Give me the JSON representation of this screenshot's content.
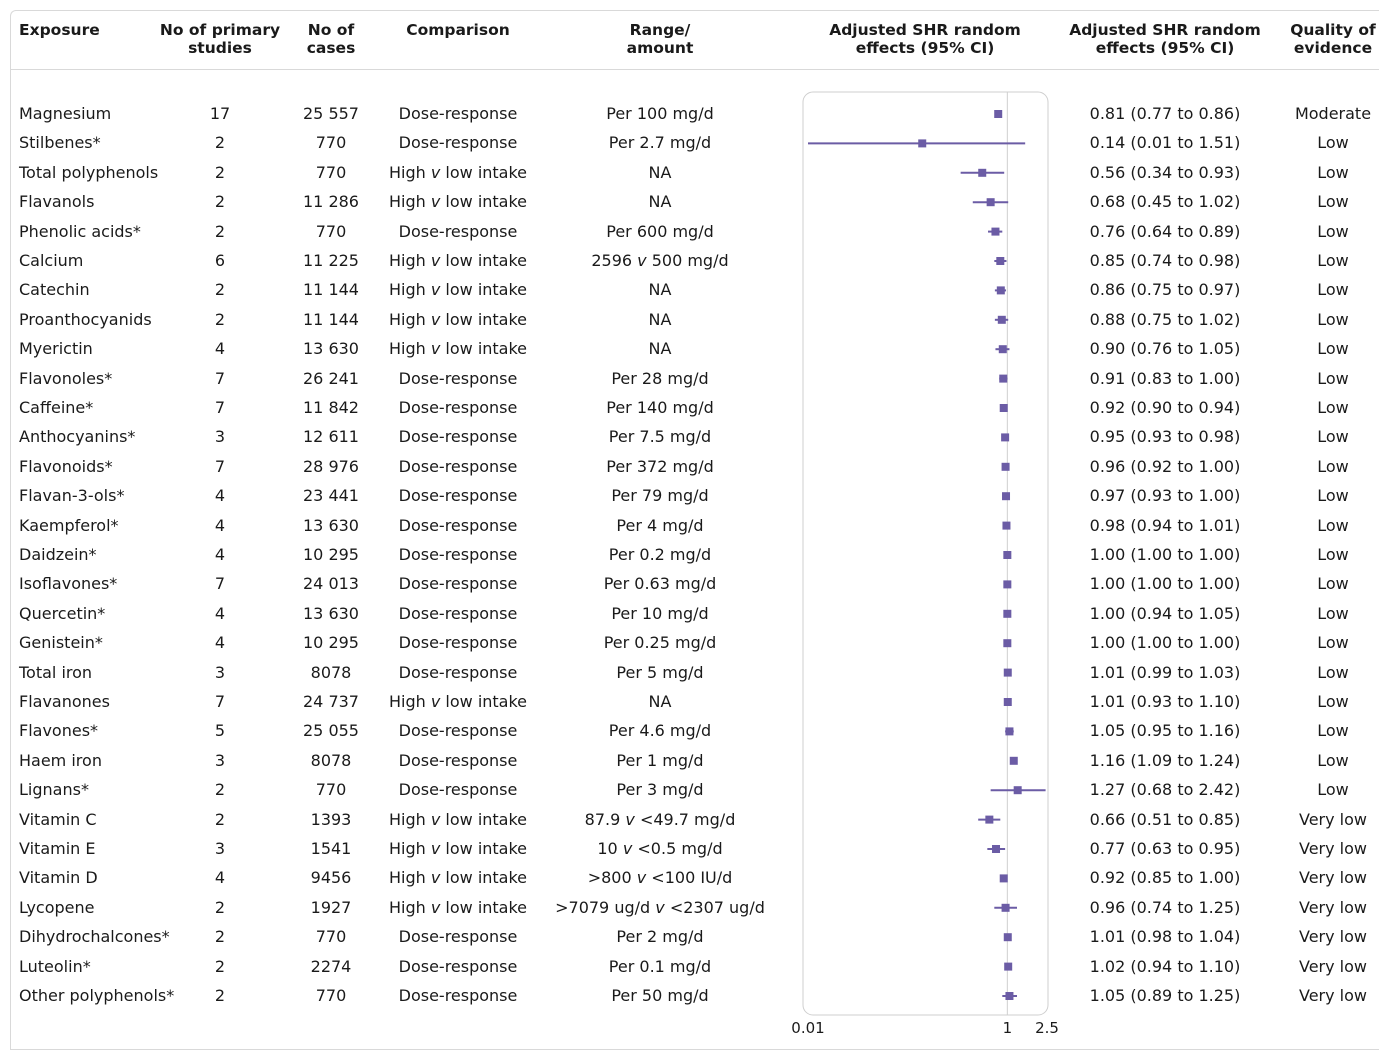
{
  "headers": {
    "exposure": "Exposure",
    "studies": "No of primary\nstudies",
    "cases": "No of\ncases",
    "comparison": "Comparison",
    "range": "Range/\namount",
    "plot": "Adjusted SHR random\neffects (95% CI)",
    "estimate": "Adjusted SHR random\neffects (95% CI)",
    "quality": "Quality of\nevidence"
  },
  "colors": {
    "marker": "#6b5ca5",
    "frame": "#cfcfcf",
    "refline": "#cfcfcf"
  },
  "chart_data": {
    "type": "forest",
    "xscale": "log",
    "xlim": [
      0.01,
      2.5
    ],
    "reference_line": 1,
    "tick_labels": [
      "0.01",
      "1",
      "2.5"
    ],
    "rows": [
      {
        "exposure": "Magnesium",
        "studies": "17",
        "cases": "25 557",
        "comparison": "Dose-response",
        "range": "Per 100 mg/d",
        "est": 0.81,
        "lo": 0.77,
        "hi": 0.86,
        "label": "0.81 (0.77 to 0.86)",
        "quality": "Moderate"
      },
      {
        "exposure": "Stilbenes*",
        "studies": "2",
        "cases": "770",
        "comparison": "Dose-response",
        "range": "Per 2.7 mg/d",
        "est": 0.14,
        "lo": 0.01,
        "hi": 1.51,
        "label": "0.14 (0.01 to 1.51)",
        "quality": "Low"
      },
      {
        "exposure": "Total polyphenols",
        "studies": "2",
        "cases": "770",
        "comparison": "High v low intake",
        "range": "NA",
        "est": 0.56,
        "lo": 0.34,
        "hi": 0.93,
        "label": "0.56 (0.34 to 0.93)",
        "quality": "Low"
      },
      {
        "exposure": "Flavanols",
        "studies": "2",
        "cases": "11 286",
        "comparison": "High v low intake",
        "range": "NA",
        "est": 0.68,
        "lo": 0.45,
        "hi": 1.02,
        "label": "0.68 (0.45 to 1.02)",
        "quality": "Low"
      },
      {
        "exposure": "Phenolic acids*",
        "studies": "2",
        "cases": "770",
        "comparison": "Dose-response",
        "range": "Per 600 mg/d",
        "est": 0.76,
        "lo": 0.64,
        "hi": 0.89,
        "label": "0.76 (0.64 to 0.89)",
        "quality": "Low"
      },
      {
        "exposure": "Calcium",
        "studies": "6",
        "cases": "11 225",
        "comparison": "High v low intake",
        "range": "2596 v 500  mg/d",
        "est": 0.85,
        "lo": 0.74,
        "hi": 0.98,
        "label": "0.85 (0.74 to 0.98)",
        "quality": "Low"
      },
      {
        "exposure": "Catechin",
        "studies": "2",
        "cases": "11 144",
        "comparison": "High v low intake",
        "range": "NA",
        "est": 0.86,
        "lo": 0.75,
        "hi": 0.97,
        "label": "0.86 (0.75 to 0.97)",
        "quality": "Low"
      },
      {
        "exposure": "Proanthocyanids",
        "studies": "2",
        "cases": "11 144",
        "comparison": "High v low intake",
        "range": "NA",
        "est": 0.88,
        "lo": 0.75,
        "hi": 1.02,
        "label": "0.88 (0.75 to 1.02)",
        "quality": "Low"
      },
      {
        "exposure": "Myerictin",
        "studies": "4",
        "cases": "13 630",
        "comparison": "High v low intake",
        "range": "NA",
        "est": 0.9,
        "lo": 0.76,
        "hi": 1.05,
        "label": "0.90 (0.76 to 1.05)",
        "quality": "Low"
      },
      {
        "exposure": "Flavonoles*",
        "studies": "7",
        "cases": "26 241",
        "comparison": "Dose-response",
        "range": "Per 28 mg/d",
        "est": 0.91,
        "lo": 0.83,
        "hi": 1.0,
        "label": "0.91 (0.83 to 1.00)",
        "quality": "Low"
      },
      {
        "exposure": "Caffeine*",
        "studies": "7",
        "cases": "11 842",
        "comparison": "Dose-response",
        "range": "Per 140 mg/d",
        "est": 0.92,
        "lo": 0.9,
        "hi": 0.94,
        "label": "0.92 (0.90 to 0.94)",
        "quality": "Low"
      },
      {
        "exposure": "Anthocyanins*",
        "studies": "3",
        "cases": "12 611",
        "comparison": "Dose-response",
        "range": "Per 7.5 mg/d",
        "est": 0.95,
        "lo": 0.93,
        "hi": 0.98,
        "label": "0.95 (0.93 to 0.98)",
        "quality": "Low"
      },
      {
        "exposure": "Flavonoids*",
        "studies": "7",
        "cases": "28 976",
        "comparison": "Dose-response",
        "range": "Per 372 mg/d",
        "est": 0.96,
        "lo": 0.92,
        "hi": 1.0,
        "label": "0.96 (0.92 to 1.00)",
        "quality": "Low"
      },
      {
        "exposure": "Flavan-3-ols*",
        "studies": "4",
        "cases": "23 441",
        "comparison": "Dose-response",
        "range": "Per 79 mg/d",
        "est": 0.97,
        "lo": 0.93,
        "hi": 1.0,
        "label": "0.97 (0.93 to 1.00)",
        "quality": "Low"
      },
      {
        "exposure": "Kaempferol*",
        "studies": "4",
        "cases": "13 630",
        "comparison": "Dose-response",
        "range": "Per 4 mg/d",
        "est": 0.98,
        "lo": 0.94,
        "hi": 1.01,
        "label": "0.98 (0.94 to 1.01)",
        "quality": "Low"
      },
      {
        "exposure": "Daidzein*",
        "studies": "4",
        "cases": "10 295",
        "comparison": "Dose-response",
        "range": "Per 0.2 mg/d",
        "est": 1.0,
        "lo": 1.0,
        "hi": 1.0,
        "label": "1.00 (1.00 to 1.00)",
        "quality": "Low"
      },
      {
        "exposure": "Isoflavones*",
        "studies": "7",
        "cases": "24 013",
        "comparison": "Dose-response",
        "range": "Per 0.63 mg/d",
        "est": 1.0,
        "lo": 1.0,
        "hi": 1.0,
        "label": "1.00 (1.00 to 1.00)",
        "quality": "Low"
      },
      {
        "exposure": "Quercetin*",
        "studies": "4",
        "cases": "13 630",
        "comparison": "Dose-response",
        "range": "Per 10 mg/d",
        "est": 1.0,
        "lo": 0.94,
        "hi": 1.05,
        "label": "1.00 (0.94 to 1.05)",
        "quality": "Low"
      },
      {
        "exposure": "Genistein*",
        "studies": "4",
        "cases": "10 295",
        "comparison": "Dose-response",
        "range": "Per 0.25 mg/d",
        "est": 1.0,
        "lo": 1.0,
        "hi": 1.0,
        "label": "1.00 (1.00 to 1.00)",
        "quality": "Low"
      },
      {
        "exposure": "Total iron",
        "studies": "3",
        "cases": "8078",
        "comparison": "Dose-response",
        "range": "Per 5 mg/d",
        "est": 1.01,
        "lo": 0.99,
        "hi": 1.03,
        "label": "1.01 (0.99 to 1.03)",
        "quality": "Low"
      },
      {
        "exposure": "Flavanones",
        "studies": "7",
        "cases": "24 737",
        "comparison": "High v low intake",
        "range": "NA",
        "est": 1.01,
        "lo": 0.93,
        "hi": 1.1,
        "label": "1.01 (0.93 to 1.10)",
        "quality": "Low"
      },
      {
        "exposure": "Flavones*",
        "studies": "5",
        "cases": "25 055",
        "comparison": "Dose-response",
        "range": "Per 4.6 mg/d",
        "est": 1.05,
        "lo": 0.95,
        "hi": 1.16,
        "label": "1.05 (0.95 to 1.16)",
        "quality": "Low"
      },
      {
        "exposure": "Haem iron",
        "studies": "3",
        "cases": "8078",
        "comparison": "Dose-response",
        "range": "Per 1 mg/d",
        "est": 1.16,
        "lo": 1.09,
        "hi": 1.24,
        "label": "1.16 (1.09 to 1.24)",
        "quality": "Low"
      },
      {
        "exposure": "Lignans*",
        "studies": "2",
        "cases": "770",
        "comparison": "Dose-response",
        "range": "Per 3 mg/d",
        "est": 1.27,
        "lo": 0.68,
        "hi": 2.42,
        "label": "1.27 (0.68 to 2.42)",
        "quality": "Low"
      },
      {
        "exposure": "Vitamin C",
        "studies": "2",
        "cases": "1393",
        "comparison": "High v low intake",
        "range": "87.9 v <49.7 mg/d",
        "est": 0.66,
        "lo": 0.51,
        "hi": 0.85,
        "label": "0.66 (0.51 to 0.85)",
        "quality": "Very low"
      },
      {
        "exposure": "Vitamin E",
        "studies": "3",
        "cases": "1541",
        "comparison": "High v low intake",
        "range": "10 v <0.5 mg/d",
        "est": 0.77,
        "lo": 0.63,
        "hi": 0.95,
        "label": "0.77 (0.63 to 0.95)",
        "quality": "Very low"
      },
      {
        "exposure": "Vitamin D",
        "studies": "4",
        "cases": "9456",
        "comparison": "High v low intake",
        "range": ">800 v <100 IU/d",
        "est": 0.92,
        "lo": 0.85,
        "hi": 1.0,
        "label": "0.92 (0.85 to 1.00)",
        "quality": "Very low"
      },
      {
        "exposure": "Lycopene",
        "studies": "2",
        "cases": "1927",
        "comparison": "High v low intake",
        "range": ">7079 ug/d v <2307 ug/d",
        "est": 0.96,
        "lo": 0.74,
        "hi": 1.25,
        "label": "0.96 (0.74 to 1.25)",
        "quality": "Very low"
      },
      {
        "exposure": "Dihydrochalcones*",
        "studies": "2",
        "cases": "770",
        "comparison": "Dose-response",
        "range": "Per 2 mg/d",
        "est": 1.01,
        "lo": 0.98,
        "hi": 1.04,
        "label": "1.01 (0.98 to 1.04)",
        "quality": "Very low"
      },
      {
        "exposure": "Luteolin*",
        "studies": "2",
        "cases": "2274",
        "comparison": "Dose-response",
        "range": "Per 0.1 mg/d",
        "est": 1.02,
        "lo": 0.94,
        "hi": 1.1,
        "label": "1.02 (0.94 to 1.10)",
        "quality": "Very low"
      },
      {
        "exposure": "Other polyphenols*",
        "studies": "2",
        "cases": "770",
        "comparison": "Dose-response",
        "range": "Per 50 mg/d",
        "est": 1.05,
        "lo": 0.89,
        "hi": 1.25,
        "label": "1.05 (0.89 to 1.25)",
        "quality": "Very low"
      }
    ]
  }
}
